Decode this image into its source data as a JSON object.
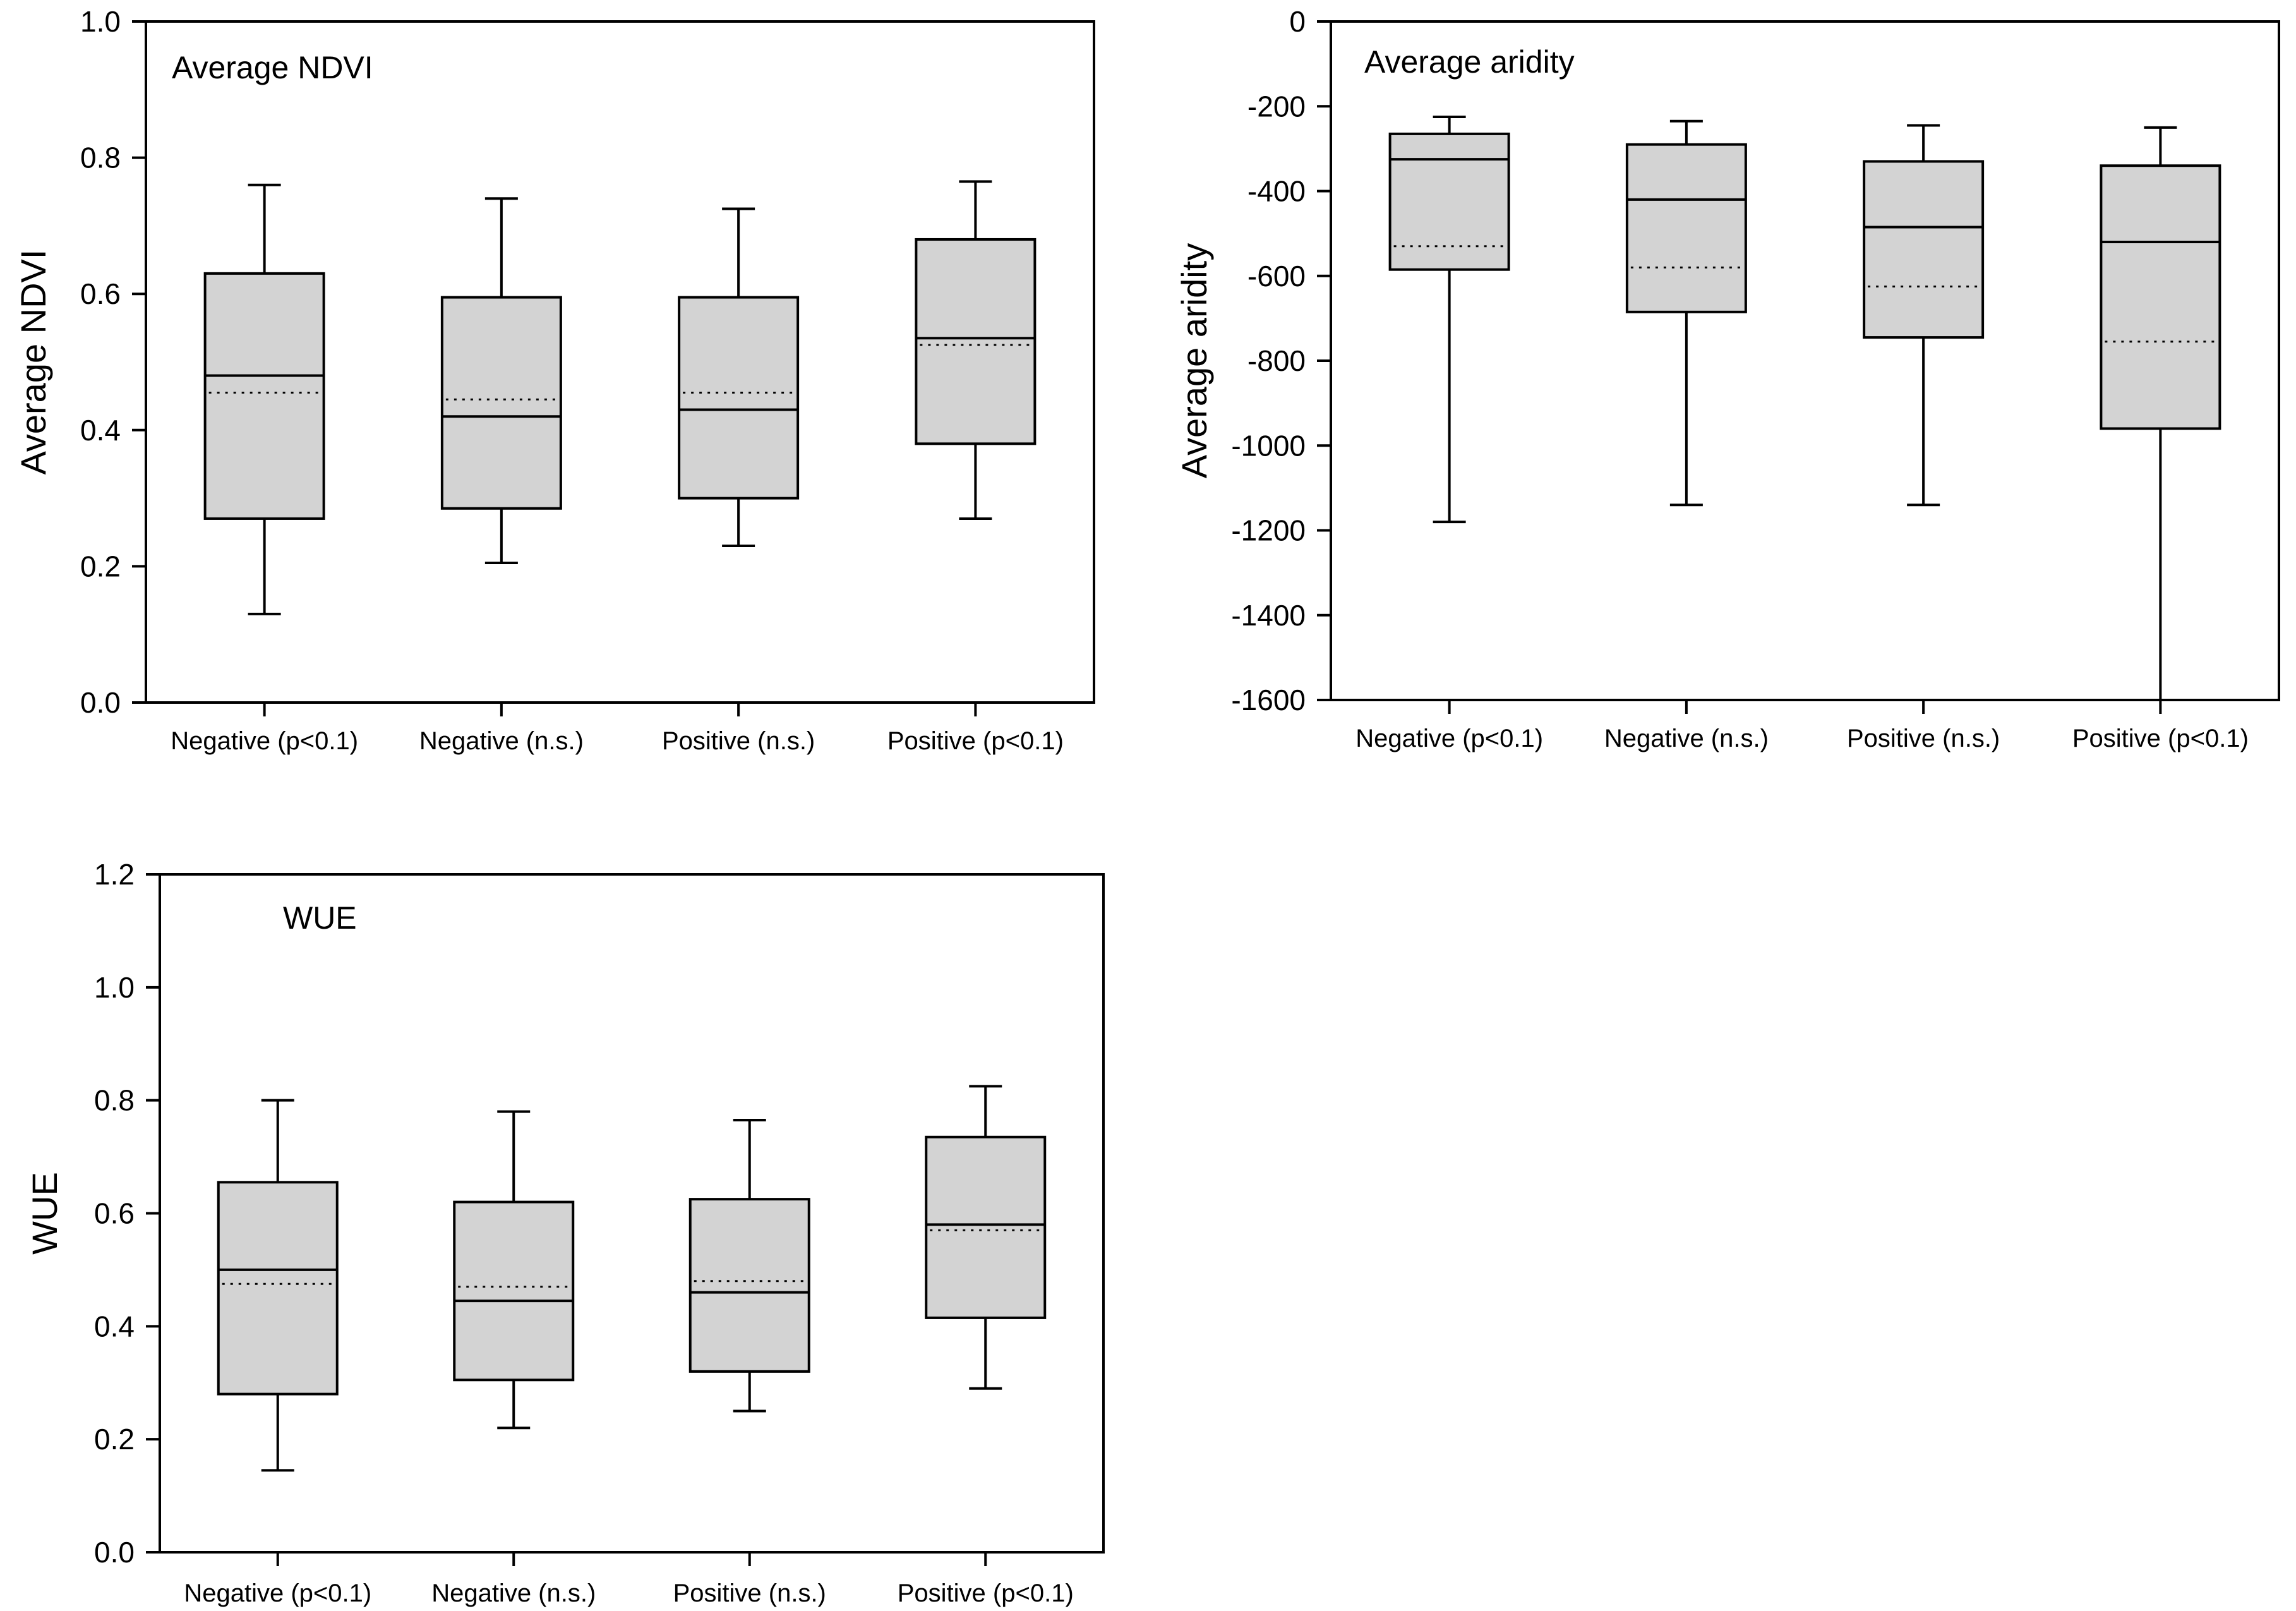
{
  "chart_data": [
    {
      "type": "box",
      "title": "Average NDVI",
      "xlabel": "",
      "ylabel": "Average NDVI",
      "ylim": [
        0.0,
        1.0
      ],
      "yticks": [
        0.0,
        0.2,
        0.4,
        0.6,
        0.8,
        1.0
      ],
      "ytick_labels": [
        "0.0",
        "0.2",
        "0.4",
        "0.6",
        "0.8",
        "1.0"
      ],
      "categories": [
        "Negative (p<0.1)",
        "Negative (n.s.)",
        "Positive (n.s.)",
        "Positive (p<0.1)"
      ],
      "whisker_low": [
        0.13,
        0.205,
        0.23,
        0.27
      ],
      "q1": [
        0.27,
        0.285,
        0.3,
        0.38
      ],
      "median": [
        0.48,
        0.42,
        0.43,
        0.535
      ],
      "mean": [
        0.455,
        0.445,
        0.455,
        0.525
      ],
      "q3": [
        0.63,
        0.595,
        0.595,
        0.68
      ],
      "whisker_high": [
        0.76,
        0.74,
        0.725,
        0.765
      ]
    },
    {
      "type": "box",
      "title": "Average aridity",
      "xlabel": "",
      "ylabel": "Average aridity",
      "ylim": [
        -1600,
        0
      ],
      "yticks": [
        0,
        -200,
        -400,
        -600,
        -800,
        -1000,
        -1200,
        -1400,
        -1600
      ],
      "ytick_labels": [
        "0",
        "-200",
        "-400",
        "-600",
        "-800",
        "-1000",
        "-1200",
        "-1400",
        "-1600"
      ],
      "categories": [
        "Negative (p<0.1)",
        "Negative (n.s.)",
        "Positive (n.s.)",
        "Positive (p<0.1)"
      ],
      "whisker_low": [
        -1180,
        -1140,
        -1140,
        -1600
      ],
      "q1": [
        -585,
        -685,
        -745,
        -960
      ],
      "median": [
        -325,
        -420,
        -485,
        -520
      ],
      "mean": [
        -530,
        -580,
        -625,
        -755
      ],
      "q3": [
        -265,
        -290,
        -330,
        -340
      ],
      "whisker_high": [
        -225,
        -235,
        -245,
        -250
      ]
    },
    {
      "type": "box",
      "title": "WUE",
      "xlabel": "",
      "ylabel": "WUE",
      "ylim": [
        0.0,
        1.2
      ],
      "yticks": [
        0.0,
        0.2,
        0.4,
        0.6,
        0.8,
        1.0,
        1.2
      ],
      "ytick_labels": [
        "0.0",
        "0.2",
        "0.4",
        "0.6",
        "0.8",
        "1.0",
        "1.2"
      ],
      "categories": [
        "Negative (p<0.1)",
        "Negative (n.s.)",
        "Positive (n.s.)",
        "Positive (p<0.1)"
      ],
      "whisker_low": [
        0.145,
        0.22,
        0.25,
        0.29
      ],
      "q1": [
        0.28,
        0.305,
        0.32,
        0.415
      ],
      "median": [
        0.5,
        0.445,
        0.46,
        0.58
      ],
      "mean": [
        0.475,
        0.47,
        0.48,
        0.57
      ],
      "q3": [
        0.655,
        0.62,
        0.625,
        0.735
      ],
      "whisker_high": [
        0.8,
        0.78,
        0.765,
        0.825
      ]
    }
  ]
}
